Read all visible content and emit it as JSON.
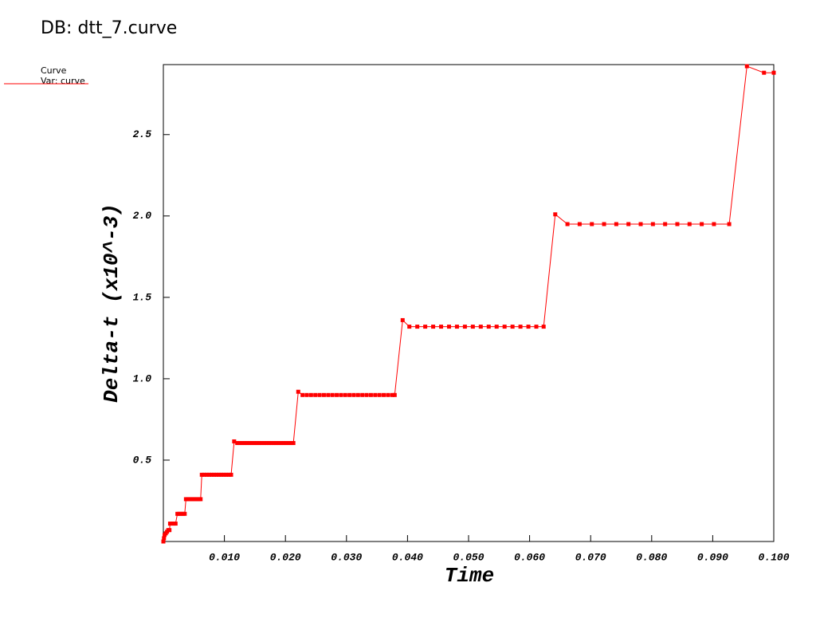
{
  "chart_data": {
    "type": "line",
    "title": "DB: dtt_7.curve",
    "legend_title": "Curve",
    "xlabel": "Time",
    "ylabel": "Delta-t (x10^-3)",
    "xlim": [
      0,
      0.1
    ],
    "ylim": [
      0,
      2.93
    ],
    "xticks": [
      {
        "value": 0.01,
        "label": "0.010"
      },
      {
        "value": 0.02,
        "label": "0.020"
      },
      {
        "value": 0.03,
        "label": "0.030"
      },
      {
        "value": 0.04,
        "label": "0.040"
      },
      {
        "value": 0.05,
        "label": "0.050"
      },
      {
        "value": 0.06,
        "label": "0.060"
      },
      {
        "value": 0.07,
        "label": "0.070"
      },
      {
        "value": 0.08,
        "label": "0.080"
      },
      {
        "value": 0.09,
        "label": "0.090"
      },
      {
        "value": 0.1,
        "label": "0.100"
      }
    ],
    "yticks": [
      0.5,
      {
        "value": 1,
        "label": "1.0"
      },
      1.5,
      {
        "value": 2,
        "label": "2.0"
      },
      2.5
    ],
    "x": [
      0,
      0.0001,
      0.0002,
      0.0004,
      0.0006,
      0.0008,
      0.001,
      0.0011,
      0.0014,
      0.0017,
      0.002,
      0.0023,
      0.0026,
      0.0029,
      0.0032,
      0.0035,
      0.0037,
      0.004,
      0.0043,
      0.0046,
      0.0049,
      0.0052,
      0.0055,
      0.0058,
      0.0061,
      0.0063,
      0.0067,
      0.0071,
      0.0075,
      0.0079,
      0.0083,
      0.0087,
      0.0091,
      0.0095,
      0.0099,
      0.0103,
      0.0107,
      0.0111,
      0.0116,
      0.0121,
      0.0125,
      0.0129,
      0.0133,
      0.0137,
      0.0141,
      0.0145,
      0.0149,
      0.0153,
      0.0157,
      0.0161,
      0.0165,
      0.0169,
      0.0173,
      0.0177,
      0.0181,
      0.0185,
      0.0189,
      0.0193,
      0.0197,
      0.0201,
      0.0205,
      0.0209,
      0.0213,
      0.0221,
      0.0228,
      0.0235,
      0.0242,
      0.0249,
      0.0256,
      0.0263,
      0.027,
      0.0277,
      0.0284,
      0.0291,
      0.0298,
      0.0305,
      0.0312,
      0.0319,
      0.0326,
      0.0333,
      0.034,
      0.0347,
      0.0354,
      0.0361,
      0.0368,
      0.0375,
      0.0379,
      0.0392,
      0.0403,
      0.0416,
      0.0429,
      0.0442,
      0.0455,
      0.0468,
      0.0481,
      0.0494,
      0.0507,
      0.052,
      0.0533,
      0.0546,
      0.0559,
      0.0572,
      0.0585,
      0.0598,
      0.0611,
      0.0623,
      0.0642,
      0.0662,
      0.0682,
      0.0702,
      0.0722,
      0.0742,
      0.0762,
      0.0782,
      0.0802,
      0.0822,
      0.0842,
      0.0862,
      0.0882,
      0.0902,
      0.0927,
      0.0956,
      0.0984,
      0.1
    ],
    "series": [
      {
        "name": "Var: curve",
        "color": "#ff0000",
        "values": [
          0,
          0.02,
          0.04,
          0.05,
          0.06,
          0.07,
          0.07,
          0.11,
          0.11,
          0.11,
          0.11,
          0.17,
          0.17,
          0.17,
          0.17,
          0.17,
          0.26,
          0.26,
          0.26,
          0.26,
          0.26,
          0.26,
          0.26,
          0.26,
          0.26,
          0.41,
          0.41,
          0.41,
          0.41,
          0.41,
          0.41,
          0.41,
          0.41,
          0.41,
          0.41,
          0.41,
          0.41,
          0.41,
          0.615,
          0.605,
          0.605,
          0.605,
          0.605,
          0.605,
          0.605,
          0.605,
          0.605,
          0.605,
          0.605,
          0.605,
          0.605,
          0.605,
          0.605,
          0.605,
          0.605,
          0.605,
          0.605,
          0.605,
          0.605,
          0.605,
          0.605,
          0.605,
          0.605,
          0.92,
          0.9,
          0.9,
          0.9,
          0.9,
          0.9,
          0.9,
          0.9,
          0.9,
          0.9,
          0.9,
          0.9,
          0.9,
          0.9,
          0.9,
          0.9,
          0.9,
          0.9,
          0.9,
          0.9,
          0.9,
          0.9,
          0.9,
          0.9,
          1.36,
          1.32,
          1.32,
          1.32,
          1.32,
          1.32,
          1.32,
          1.32,
          1.32,
          1.32,
          1.32,
          1.32,
          1.32,
          1.32,
          1.32,
          1.32,
          1.32,
          1.32,
          1.32,
          2.01,
          1.95,
          1.95,
          1.95,
          1.95,
          1.95,
          1.95,
          1.95,
          1.95,
          1.95,
          1.95,
          1.95,
          1.95,
          1.95,
          1.95,
          2.92,
          2.88,
          2.88
        ]
      }
    ]
  }
}
